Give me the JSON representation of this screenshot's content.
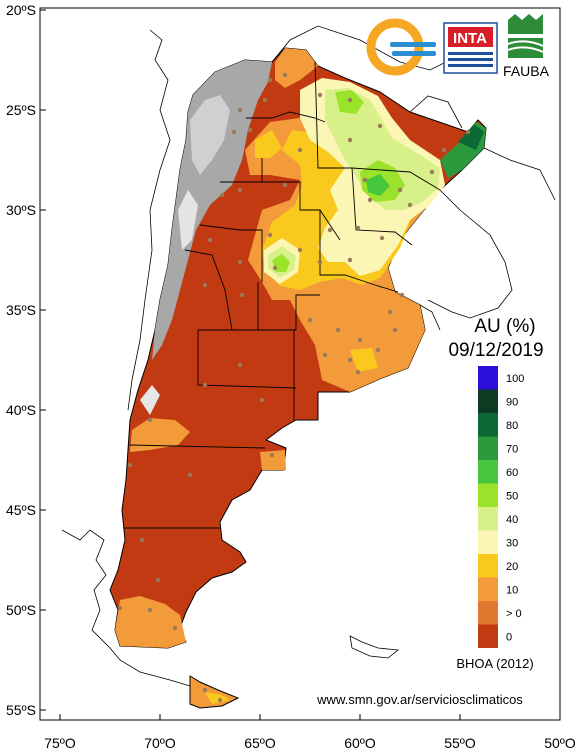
{
  "map": {
    "lat_ticks": [
      "20ºS",
      "25ºS",
      "30ºS",
      "35ºS",
      "40ºS",
      "45ºS",
      "50ºS",
      "55ºS"
    ],
    "lon_ticks": [
      "75ºO",
      "70ºO",
      "65ºO",
      "60ºO",
      "55ºO",
      "50ºO"
    ]
  },
  "title": {
    "variable": "AU (%)",
    "date": "09/12/2019"
  },
  "legend": {
    "labels": [
      "100",
      "90",
      "80",
      "70",
      "60",
      "50",
      "40",
      "30",
      "20",
      "10",
      "> 0",
      "0"
    ],
    "colors": [
      "#2b10d9",
      "#0c3b24",
      "#0b6a35",
      "#2a9a3c",
      "#45c63b",
      "#9be22a",
      "#d8f08a",
      "#fbf6b4",
      "#f9c91d",
      "#f39a3a",
      "#e0782f",
      "#c23a12"
    ]
  },
  "logos": {
    "inta_label": "INTA",
    "fauba_label": "FAUBA"
  },
  "footer": {
    "model": "BHOA (2012)",
    "source": "www.smn.gov.ar/serviciosclimaticos"
  }
}
